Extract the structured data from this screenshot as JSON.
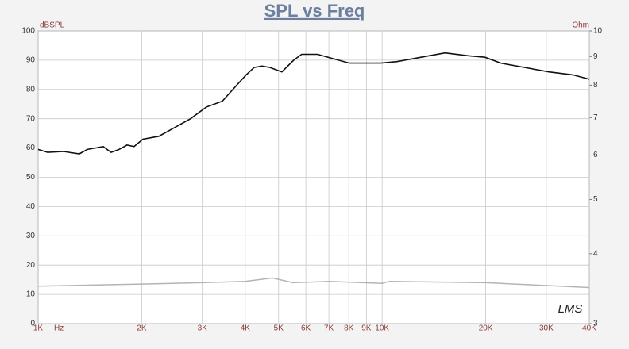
{
  "chart_data": {
    "type": "line",
    "title": "SPL vs Freq",
    "x_label": "Hz",
    "y_label": "dBSPL",
    "y2_label": "Ohm",
    "logo": "LMS",
    "xscale": "log",
    "y2scale": "log",
    "grid": true,
    "xlim": [
      1000,
      40000
    ],
    "xticks": [
      {
        "value": 1000,
        "label": "1K"
      },
      {
        "value": 2000,
        "label": "2K"
      },
      {
        "value": 3000,
        "label": "3K"
      },
      {
        "value": 4000,
        "label": "4K"
      },
      {
        "value": 5000,
        "label": "5K"
      },
      {
        "value": 6000,
        "label": "6K"
      },
      {
        "value": 7000,
        "label": "7K"
      },
      {
        "value": 8000,
        "label": "8K"
      },
      {
        "value": 9000,
        "label": "9K"
      },
      {
        "value": 10000,
        "label": "10K"
      },
      {
        "value": 20000,
        "label": "20K"
      },
      {
        "value": 30000,
        "label": "30K"
      },
      {
        "value": 40000,
        "label": "40K"
      }
    ],
    "ylim": [
      0,
      100
    ],
    "yticks": [
      0,
      10,
      20,
      30,
      40,
      50,
      60,
      70,
      80,
      90,
      100
    ],
    "y2lim": [
      3,
      10
    ],
    "y2ticks": [
      3,
      4,
      5,
      6,
      7,
      8,
      9,
      10
    ],
    "series": [
      {
        "color": "#111111",
        "x": [
          1000,
          1066,
          1185,
          1318,
          1390,
          1466,
          1546,
          1630,
          1719,
          1813,
          1900,
          2016,
          2243,
          2494,
          2773,
          3085,
          3431,
          3816,
          4025,
          4245,
          4477,
          4722,
          5111,
          5533,
          5835,
          6490,
          7218,
          8028,
          8929,
          9931,
          11040,
          12970,
          15230,
          17890,
          19900,
          22130,
          25990,
          30520,
          35850,
          40000
        ],
        "values": [
          59.5,
          58.5,
          58.8,
          58,
          59.5,
          60,
          60.5,
          58.5,
          59.5,
          61,
          60.5,
          63,
          64,
          67,
          70,
          74,
          76,
          82,
          85,
          87.5,
          88,
          87.5,
          86,
          90,
          92,
          92,
          90.5,
          89,
          89,
          89,
          89.5,
          91,
          92.5,
          91.5,
          91,
          89,
          87.5,
          86,
          85,
          83.5
        ]
      },
      {
        "color": "#b4b4b4",
        "axis": "y2",
        "x": [
          1000,
          2000,
          3000,
          4000,
          4800,
          5500,
          7000,
          10000,
          10500,
          20000,
          40000
        ],
        "values": [
          3.5,
          3.53,
          3.55,
          3.57,
          3.62,
          3.55,
          3.57,
          3.54,
          3.57,
          3.55,
          3.48
        ]
      }
    ]
  }
}
